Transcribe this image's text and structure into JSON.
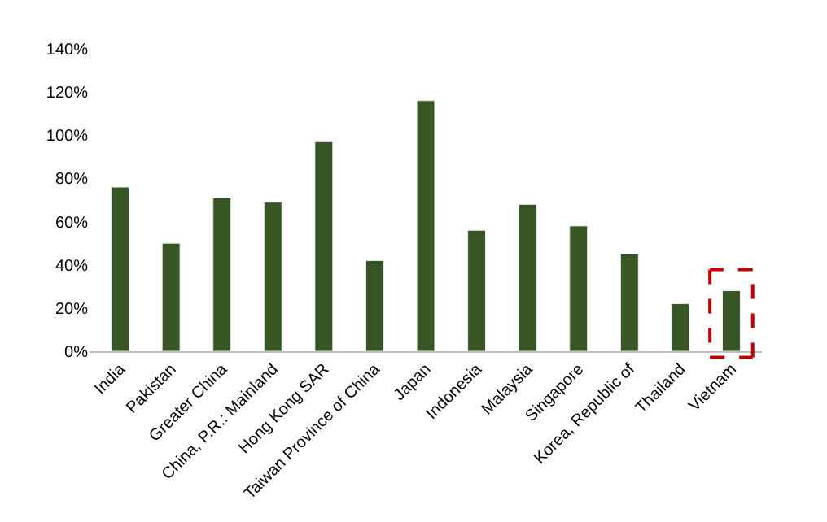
{
  "chart_data": {
    "type": "bar",
    "categories": [
      "India",
      "Pakistan",
      "Greater China",
      "China, P.R.: Mainland",
      "Hong Kong SAR",
      "Taiwan Province of China",
      "Japan",
      "Indonesia",
      "Malaysia",
      "Singapore",
      "Korea, Republic of",
      "Thailand",
      "Vietnam"
    ],
    "values": [
      76,
      50,
      71,
      69,
      97,
      42,
      116,
      56,
      68,
      58,
      45,
      22,
      28
    ],
    "color": "#375623",
    "ylim": [
      0,
      140
    ],
    "yticks": [
      {
        "value": 0,
        "label": "0%"
      },
      {
        "value": 20,
        "label": "20%"
      },
      {
        "value": 40,
        "label": "40%"
      },
      {
        "value": 60,
        "label": "60%"
      },
      {
        "value": 80,
        "label": "80%"
      },
      {
        "value": 100,
        "label": "100%"
      },
      {
        "value": 120,
        "label": "120%"
      },
      {
        "value": 140,
        "label": "140%"
      }
    ],
    "legend": false
  }
}
